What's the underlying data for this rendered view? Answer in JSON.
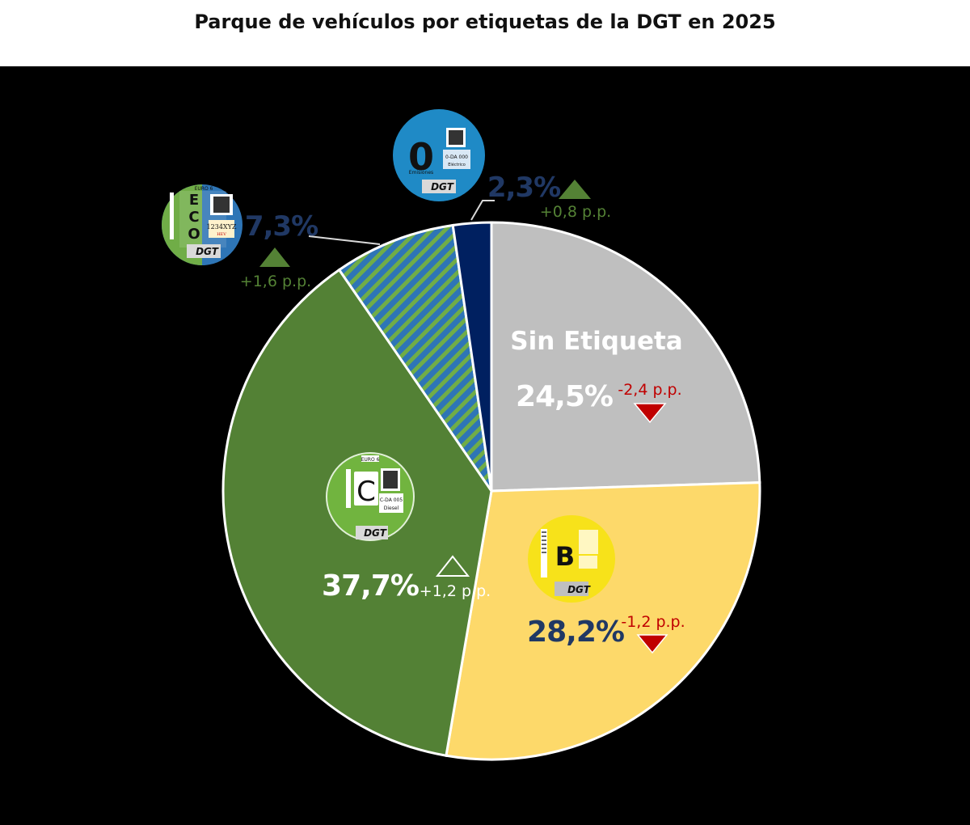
{
  "chart_data": {
    "type": "pie",
    "title": "Parque de vehículos por etiquetas de la DGT en 2025",
    "slices": [
      {
        "key": "sin",
        "label": "Sin Etiqueta",
        "value": 24.5,
        "value_label": "24,5%",
        "change": "-2,4 p.p.",
        "trend": "down",
        "color": "#bfbfbf"
      },
      {
        "key": "b",
        "label": "B",
        "value": 28.2,
        "value_label": "28,2%",
        "change": "-1,2 p.p.",
        "trend": "down",
        "color": "#fdd96a"
      },
      {
        "key": "c",
        "label": "C",
        "value": 37.7,
        "value_label": "37,7%",
        "change": "+1,2 p.p.",
        "trend": "up",
        "color": "#538135"
      },
      {
        "key": "eco",
        "label": "ECO",
        "value": 7.3,
        "value_label": "7,3%",
        "change": "+1,6 p.p.",
        "trend": "up",
        "color": "#2e75b6"
      },
      {
        "key": "cero",
        "label": "0",
        "value": 2.3,
        "value_label": "2,3%",
        "change": "+0,8 p.p.",
        "trend": "up",
        "color": "#002060"
      }
    ],
    "colors": {
      "up": "#548235",
      "down": "#c00000",
      "eco_stripe": "#70ad47",
      "label_dark": "#203864"
    }
  },
  "badges": {
    "cero": {
      "big": "0",
      "caption": "Emisiones",
      "plate": "0-DA 000",
      "fuel": "Eléctrico",
      "brand": "DGT"
    },
    "eco": {
      "letters": [
        "E",
        "C",
        "O"
      ],
      "euro": "EURO 6",
      "plate": "1234XYZ",
      "fuel": "HEV",
      "brand": "DGT"
    },
    "c": {
      "big": "C",
      "euro": "EURO 6",
      "plate": "C-DA 005",
      "fuel": "Diesel",
      "brand": "DGT"
    },
    "b": {
      "big": "B",
      "brand": "DGT"
    }
  }
}
